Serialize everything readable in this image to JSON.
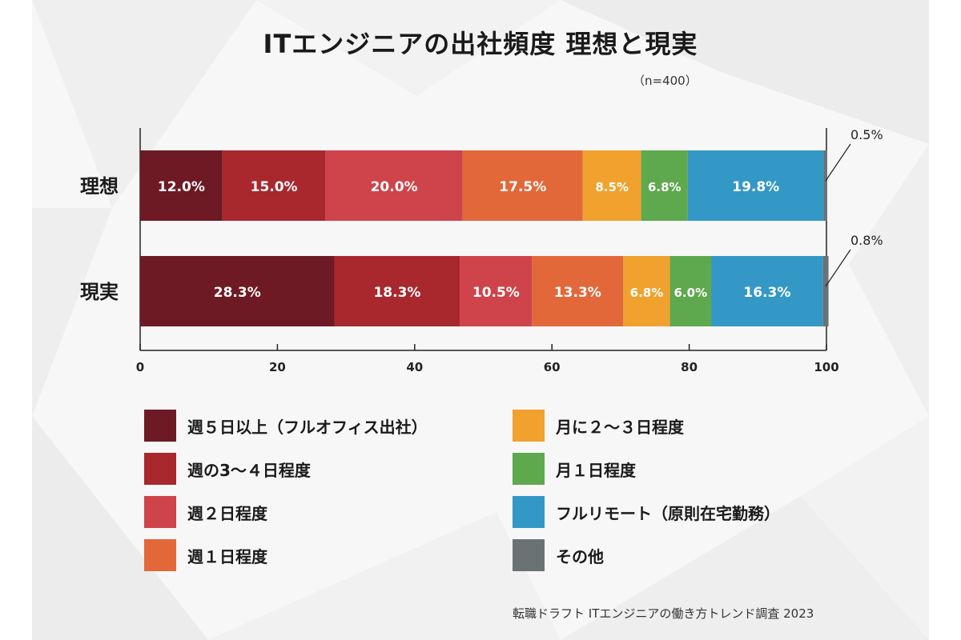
{
  "title": "ITエンジニアの出社頻度 理想と現実",
  "sample_size": "（n=400）",
  "source": "転職ドラフト ITエンジニアの働き方トレンド調査 2023",
  "chart_data": {
    "type": "bar",
    "orientation": "horizontal",
    "stacked": true,
    "categories": [
      "理想",
      "現実"
    ],
    "series": [
      {
        "name": "週５日以上（フルオフィス出社）",
        "color": "#6e1a24",
        "values": [
          12.0,
          28.3
        ],
        "labels": [
          "12.0%",
          "28.3%"
        ]
      },
      {
        "name": "週の3～４日程度",
        "color": "#a8282e",
        "values": [
          15.0,
          18.3
        ],
        "labels": [
          "15.0%",
          "18.3%"
        ]
      },
      {
        "name": "週２日程度",
        "color": "#cf434a",
        "values": [
          20.0,
          10.5
        ],
        "labels": [
          "20.0%",
          "10.5%"
        ]
      },
      {
        "name": "週１日程度",
        "color": "#e2683a",
        "values": [
          17.5,
          13.3
        ],
        "labels": [
          "17.5%",
          "13.3%"
        ]
      },
      {
        "name": "月に２～３日程度",
        "color": "#f0a12e",
        "values": [
          8.5,
          6.8
        ],
        "labels": [
          "8.5%",
          "6.8%"
        ]
      },
      {
        "name": "月１日程度",
        "color": "#5ea84e",
        "values": [
          6.8,
          6.0
        ],
        "labels": [
          "6.8%",
          "6.0%"
        ]
      },
      {
        "name": "フルリモート（原則在宅勤務）",
        "color": "#3398c6",
        "values": [
          19.8,
          16.3
        ],
        "labels": [
          "19.8%",
          "16.3%"
        ]
      },
      {
        "name": "その他",
        "color": "#6a7274",
        "values": [
          0.5,
          0.8
        ],
        "labels": [
          "0.5%",
          "0.8%"
        ]
      }
    ],
    "xlim": [
      0,
      100
    ],
    "xticks": [
      0,
      20,
      40,
      60,
      80,
      100
    ],
    "legend_position": "bottom"
  }
}
